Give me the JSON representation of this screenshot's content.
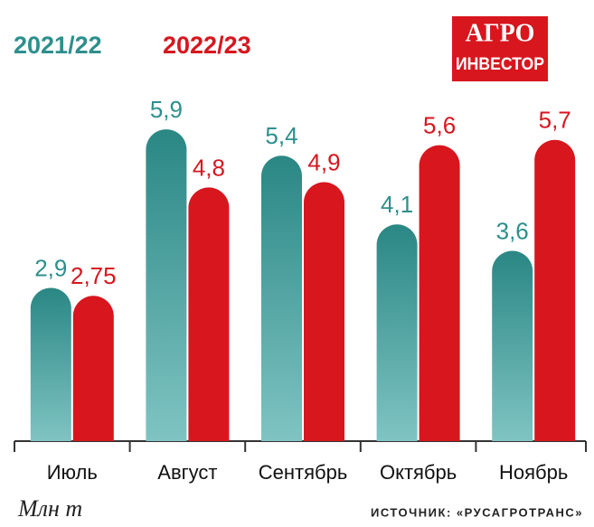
{
  "chart_data": {
    "type": "bar",
    "logo": [
      "АГРО",
      "ИНВЕСТОР"
    ],
    "categories": [
      "Июль",
      "Август",
      "Сентябрь",
      "Октябрь",
      "Ноябрь"
    ],
    "series": [
      {
        "name": "2021/22",
        "color": "#2e8f8c",
        "values": [
          2.9,
          5.9,
          5.4,
          4.1,
          3.6
        ],
        "value_labels": [
          "2,9",
          "5,9",
          "5,4",
          "4,1",
          "3,6"
        ]
      },
      {
        "name": "2022/23",
        "color": "#d7161e",
        "values": [
          2.75,
          4.8,
          4.9,
          5.6,
          5.7
        ],
        "value_labels": [
          "2,75",
          "4,8",
          "4,9",
          "5,6",
          "5,7"
        ]
      }
    ],
    "ylim": [
      0,
      6.5
    ],
    "y_label": "Млн т",
    "source": "ИСТОЧНИК: «РУСАГРОТРАНС»",
    "legend": "top-left"
  }
}
